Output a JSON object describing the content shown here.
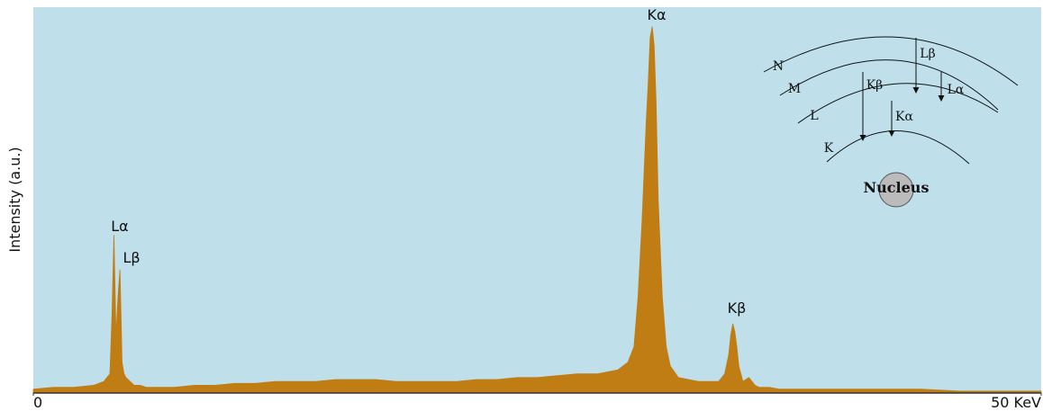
{
  "chart_data": {
    "type": "area",
    "y_label": "Intensity (a.u.)",
    "x": [
      0,
      1,
      2,
      3,
      3.5,
      3.8,
      3.9,
      4.0,
      4.1,
      4.2,
      4.3,
      4.35,
      4.4,
      4.5,
      4.6,
      4.8,
      5.0,
      5.3,
      5.6,
      6,
      7,
      8,
      9,
      10,
      11,
      12,
      13,
      14,
      15,
      16,
      17,
      18,
      19,
      20,
      21,
      22,
      23,
      24,
      25,
      26,
      27,
      28,
      29,
      29.5,
      29.8,
      30.0,
      30.2,
      30.4,
      30.5,
      30.6,
      30.7,
      30.8,
      30.9,
      31.0,
      31.2,
      31.4,
      31.6,
      32,
      33,
      34,
      34.3,
      34.5,
      34.6,
      34.7,
      34.8,
      34.9,
      35.0,
      35.2,
      35.5,
      35.8,
      36,
      36.5,
      37,
      38,
      40,
      42,
      44,
      46,
      48,
      50
    ],
    "values": [
      1,
      1.5,
      1.5,
      2,
      3,
      5,
      20,
      41,
      15,
      25,
      32,
      20,
      8,
      5,
      4,
      3,
      2,
      2,
      1.5,
      1.5,
      1.5,
      2,
      2,
      2.5,
      2.5,
      3,
      3,
      3,
      3.5,
      3.5,
      3.5,
      3,
      3,
      3,
      3,
      3.5,
      3.5,
      4,
      4,
      4.5,
      5,
      5,
      6,
      8,
      12,
      25,
      45,
      70,
      80,
      92,
      95,
      90,
      75,
      50,
      25,
      12,
      7,
      4,
      3,
      3,
      5,
      10,
      15,
      18,
      16,
      12,
      7,
      3,
      4,
      2,
      1.5,
      1.5,
      1,
      1,
      1,
      1,
      1,
      0.5,
      0.5,
      0.5
    ],
    "color": "#c07d14",
    "background": "#bfe0ea",
    "xlim": [
      0,
      50
    ],
    "ylim": [
      0,
      100
    ],
    "xticks": [
      0,
      {
        "value": 50,
        "label": "50 KeV"
      }
    ],
    "annotations": [
      "Lα",
      "Lβ",
      "Kα",
      "Kβ"
    ]
  },
  "diagram": {
    "shells": [
      "N",
      "M",
      "L",
      "K"
    ],
    "transitions": [
      "Lβ",
      "Lα",
      "Kβ",
      "Kα"
    ],
    "nucleus": "Nucleus"
  }
}
